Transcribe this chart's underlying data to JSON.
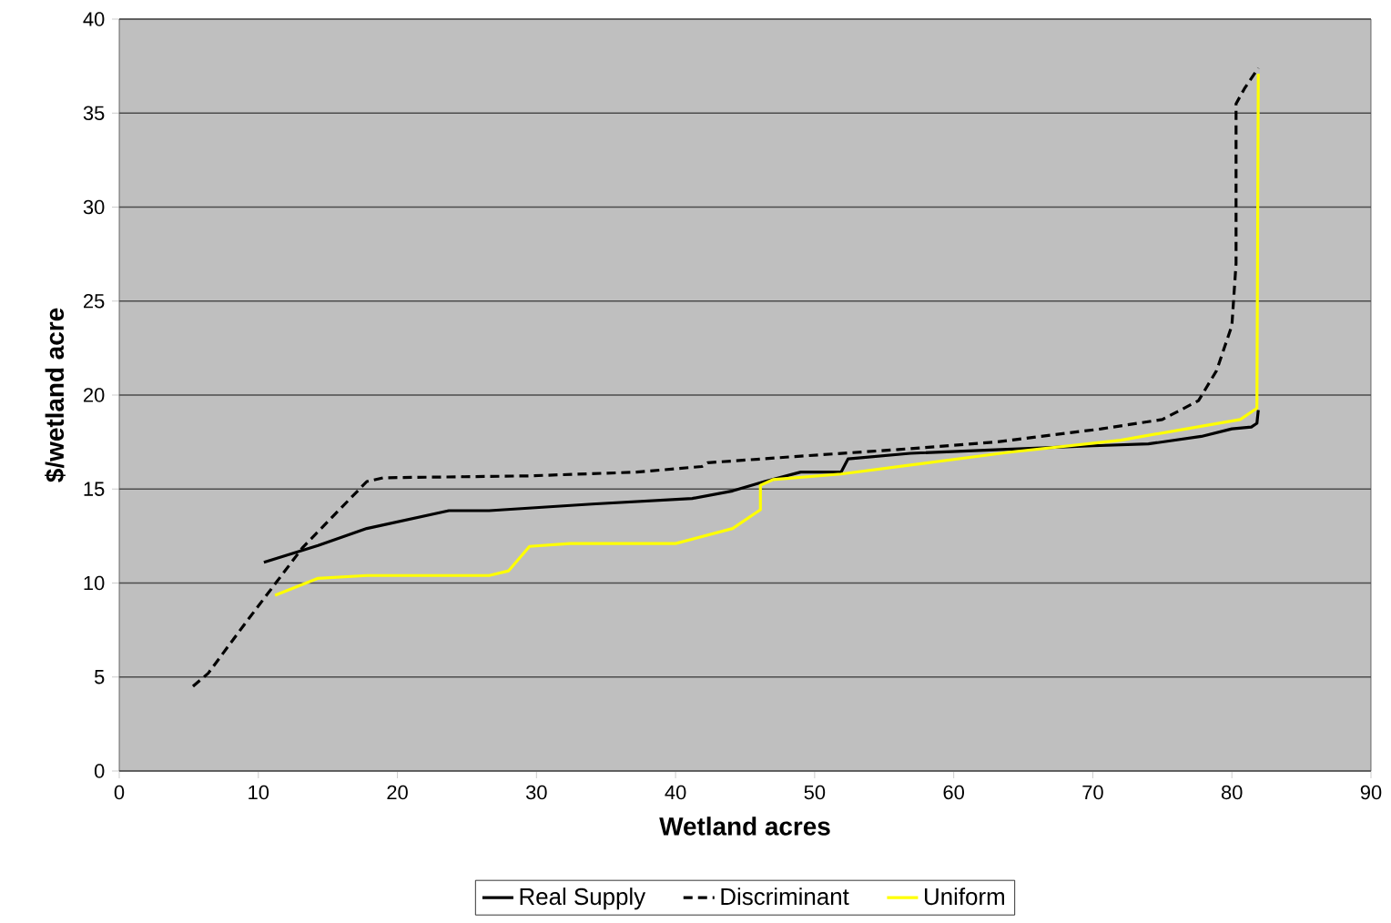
{
  "chart_data": {
    "type": "line",
    "xlabel": "Wetland acres",
    "ylabel": "$/wetland acre",
    "xlim": [
      0,
      90
    ],
    "xticks": [
      0,
      10,
      20,
      30,
      40,
      50,
      60,
      70,
      80,
      90
    ],
    "ylim": [
      0,
      40
    ],
    "yticks": [
      0,
      5,
      10,
      15,
      20,
      25,
      30,
      35,
      40
    ],
    "grid": "y",
    "legend": "bottom",
    "series": [
      {
        "name": "Real Supply",
        "color": "#000000",
        "line_style": "solid",
        "x": [
          10.4,
          14.3,
          17.8,
          23.7,
          26.6,
          34,
          41.2,
          44.1,
          46.4,
          49,
          51.9,
          52.4,
          56.9,
          63.4,
          70,
          74,
          77.8,
          80,
          81.4,
          81.8,
          81.9
        ],
        "values": [
          11.1,
          12.0,
          12.9,
          13.85,
          13.85,
          14.2,
          14.5,
          14.9,
          15.4,
          15.9,
          15.9,
          16.6,
          16.9,
          17.1,
          17.3,
          17.4,
          17.8,
          18.2,
          18.3,
          18.5,
          19.2
        ]
      },
      {
        "name": "Discriminant",
        "color": "#000000",
        "line_style": "dashed",
        "x": [
          5.3,
          6.4,
          9.0,
          13.2,
          17.8,
          19.0,
          29.5,
          37.2,
          41.9,
          42.3,
          49,
          56,
          63,
          70.6,
          75,
          77.6,
          78.9,
          80.0,
          80.3,
          80.3,
          80.9,
          81.9
        ],
        "values": [
          4.5,
          5.2,
          7.8,
          11.9,
          15.4,
          15.6,
          15.7,
          15.9,
          16.2,
          16.4,
          16.75,
          17.1,
          17.5,
          18.2,
          18.7,
          19.7,
          21.3,
          23.7,
          27.0,
          35.5,
          36.3,
          37.4
        ]
      },
      {
        "name": "Uniform",
        "color": "#ffff00",
        "line_style": "solid",
        "x": [
          11.2,
          14.3,
          17.8,
          26.6,
          28.0,
          29.5,
          32.4,
          40.0,
          44.1,
          46.1,
          46.1,
          47.0,
          51.9,
          63.9,
          72,
          80.6,
          81.8,
          81.9
        ],
        "values": [
          9.35,
          10.25,
          10.4,
          10.4,
          10.65,
          11.95,
          12.1,
          12.1,
          12.9,
          13.9,
          15.2,
          15.5,
          15.8,
          16.95,
          17.6,
          18.7,
          19.3,
          37.1
        ]
      }
    ]
  }
}
